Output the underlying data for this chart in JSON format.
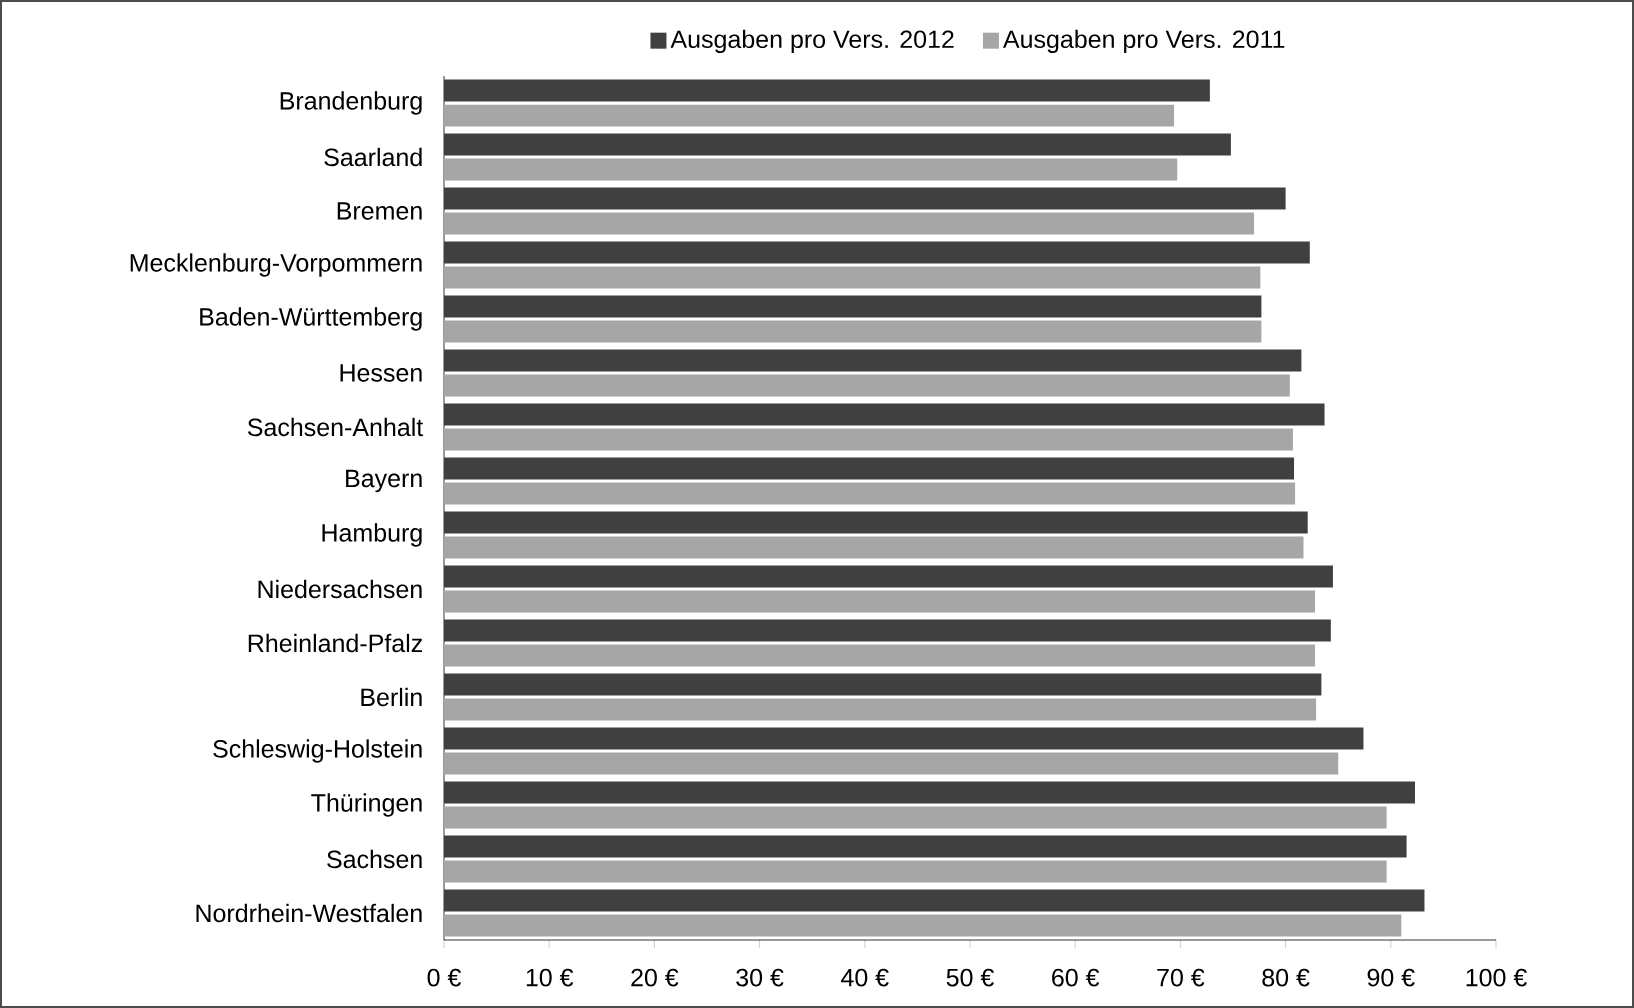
{
  "chart_data": {
    "type": "bar",
    "orientation": "horizontal",
    "categories": [
      "Brandenburg",
      "Saarland",
      "Bremen",
      "Mecklenburg-Vorpommern",
      "Baden-Württemberg",
      "Hessen",
      "Sachsen-Anhalt",
      "Bayern",
      "Hamburg",
      "Niedersachsen",
      "Rheinland-Pfalz",
      "Berlin",
      "Schleswig-Holstein",
      "Thüringen",
      "Sachsen",
      "Nordrhein-Westfalen"
    ],
    "series": [
      {
        "name": "Ausgaben pro Vers. 2012",
        "color": "#404040",
        "values": [
          72.8,
          74.8,
          80.0,
          82.3,
          77.7,
          81.5,
          83.7,
          80.8,
          82.1,
          84.5,
          84.3,
          83.4,
          87.4,
          92.3,
          91.5,
          93.2
        ]
      },
      {
        "name": "Ausgaben pro Vers. 2011",
        "color": "#a6a6a6",
        "values": [
          69.4,
          69.7,
          77.0,
          77.6,
          77.7,
          80.4,
          80.7,
          80.9,
          81.7,
          82.8,
          82.8,
          82.9,
          85.0,
          89.6,
          89.6,
          91.0
        ]
      }
    ],
    "xlim": [
      0,
      100
    ],
    "xticks": [
      {
        "value": 0,
        "label": "0 €"
      },
      {
        "value": 10,
        "label": "10 €"
      },
      {
        "value": 20,
        "label": "20 €"
      },
      {
        "value": 30,
        "label": "30 €"
      },
      {
        "value": 40,
        "label": "40 €"
      },
      {
        "value": 50,
        "label": "50 €"
      },
      {
        "value": 60,
        "label": "60 €"
      },
      {
        "value": 70,
        "label": "70 €"
      },
      {
        "value": 80,
        "label": "80 €"
      },
      {
        "value": 90,
        "label": "90 €"
      },
      {
        "value": 100,
        "label": "100 €"
      }
    ],
    "grid": false,
    "legend": "top"
  }
}
